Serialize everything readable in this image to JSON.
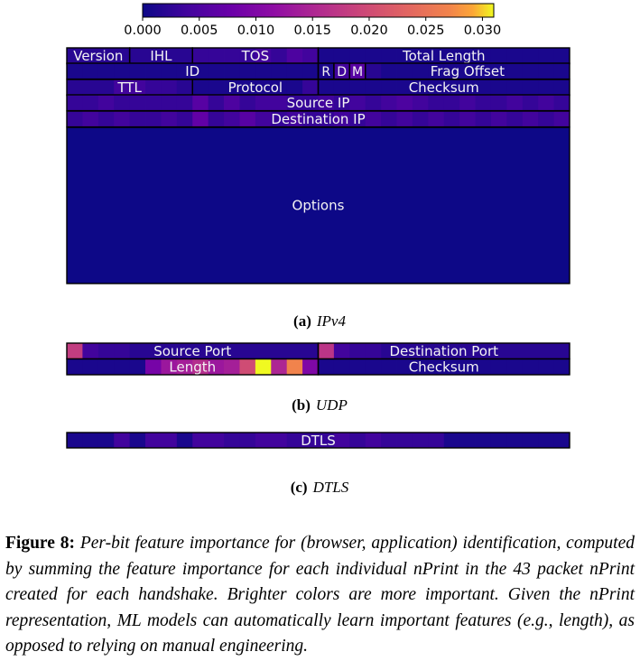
{
  "chart_data": {
    "type": "heatmap",
    "colormap": "plasma",
    "colorbar": {
      "range": [
        0.0,
        0.031
      ],
      "ticks": [
        "0.000",
        "0.005",
        "0.010",
        "0.015",
        "0.020",
        "0.025",
        "0.030"
      ],
      "tick_values": [
        0.0,
        0.005,
        0.01,
        0.015,
        0.02,
        0.025,
        0.03
      ],
      "orientation": "horizontal",
      "placement": "top"
    },
    "panels": [
      {
        "id": "ipv4",
        "label": "(a)",
        "caption": "IPv4",
        "bits_per_row": 32,
        "rows": [
          {
            "values": [
              0.002,
              0.002,
              0.002,
              0.002,
              0.002,
              0.002,
              0.002,
              0.002,
              0.003,
              0.003,
              0.003,
              0.003,
              0.004,
              0.003,
              0.005,
              0.004,
              0.001,
              0.001,
              0.001,
              0.001,
              0.001,
              0.001,
              0.001,
              0.001,
              0.001,
              0.001,
              0.001,
              0.001,
              0.001,
              0.001,
              0.001,
              0.001
            ],
            "fields": [
              {
                "label": "Version",
                "start": 0,
                "width": 4
              },
              {
                "label": "IHL",
                "start": 4,
                "width": 4
              },
              {
                "label": "TOS",
                "start": 8,
                "width": 8
              },
              {
                "label": "Total Length",
                "start": 16,
                "width": 16
              }
            ]
          },
          {
            "values": [
              0.001,
              0.001,
              0.001,
              0.001,
              0.001,
              0.001,
              0.001,
              0.001,
              0.001,
              0.001,
              0.001,
              0.001,
              0.001,
              0.001,
              0.001,
              0.001,
              0.001,
              0.004,
              0.006,
              0.002,
              0.001,
              0.001,
              0.001,
              0.001,
              0.001,
              0.001,
              0.001,
              0.001,
              0.001,
              0.001,
              0.001,
              0.001
            ],
            "fields": [
              {
                "label": "ID",
                "start": 0,
                "width": 16
              },
              {
                "label": "R",
                "start": 16,
                "width": 1
              },
              {
                "label": "D",
                "start": 17,
                "width": 1
              },
              {
                "label": "M",
                "start": 18,
                "width": 1
              },
              {
                "label": "Frag Offset",
                "start": 19,
                "width": 13
              }
            ]
          },
          {
            "values": [
              0.002,
              0.002,
              0.002,
              0.004,
              0.004,
              0.003,
              0.003,
              0.002,
              0.001,
              0.001,
              0.001,
              0.001,
              0.001,
              0.001,
              0.001,
              0.003,
              0.001,
              0.001,
              0.001,
              0.001,
              0.001,
              0.001,
              0.001,
              0.001,
              0.001,
              0.001,
              0.001,
              0.001,
              0.001,
              0.001,
              0.001,
              0.001
            ],
            "fields": [
              {
                "label": "TTL",
                "start": 0,
                "width": 8
              },
              {
                "label": "Protocol",
                "start": 8,
                "width": 8
              },
              {
                "label": "Checksum",
                "start": 16,
                "width": 16
              }
            ]
          },
          {
            "values": [
              0.003,
              0.003,
              0.004,
              0.003,
              0.003,
              0.003,
              0.003,
              0.003,
              0.006,
              0.003,
              0.005,
              0.003,
              0.004,
              0.004,
              0.003,
              0.003,
              0.004,
              0.003,
              0.004,
              0.003,
              0.004,
              0.005,
              0.004,
              0.003,
              0.003,
              0.004,
              0.003,
              0.003,
              0.004,
              0.003,
              0.004,
              0.003
            ],
            "fields": [
              {
                "label": "Source IP",
                "start": 0,
                "width": 32
              }
            ]
          },
          {
            "values": [
              0.003,
              0.004,
              0.003,
              0.004,
              0.003,
              0.003,
              0.004,
              0.003,
              0.007,
              0.003,
              0.004,
              0.006,
              0.004,
              0.003,
              0.004,
              0.003,
              0.003,
              0.004,
              0.003,
              0.004,
              0.003,
              0.004,
              0.003,
              0.004,
              0.003,
              0.004,
              0.003,
              0.004,
              0.003,
              0.004,
              0.003,
              0.004
            ],
            "fields": [
              {
                "label": "Destination IP",
                "start": 0,
                "width": 32
              }
            ]
          }
        ],
        "options_label": "Options",
        "options_value": 0.0
      },
      {
        "id": "udp",
        "label": "(b)",
        "caption": "UDP",
        "bits_per_row": 32,
        "rows": [
          {
            "values": [
              0.018,
              0.004,
              0.003,
              0.003,
              0.002,
              0.002,
              0.002,
              0.002,
              0.002,
              0.002,
              0.002,
              0.002,
              0.002,
              0.002,
              0.002,
              0.002,
              0.017,
              0.004,
              0.003,
              0.003,
              0.002,
              0.002,
              0.002,
              0.002,
              0.002,
              0.002,
              0.002,
              0.002,
              0.002,
              0.002,
              0.002,
              0.002
            ],
            "fields": [
              {
                "label": "Source Port",
                "start": 0,
                "width": 16
              },
              {
                "label": "Destination Port",
                "start": 16,
                "width": 16
              }
            ]
          },
          {
            "values": [
              0.001,
              0.001,
              0.001,
              0.001,
              0.001,
              0.009,
              0.013,
              0.014,
              0.016,
              0.013,
              0.014,
              0.02,
              0.031,
              0.015,
              0.027,
              0.01,
              0.001,
              0.001,
              0.001,
              0.001,
              0.001,
              0.001,
              0.001,
              0.001,
              0.001,
              0.001,
              0.001,
              0.001,
              0.001,
              0.001,
              0.001,
              0.001
            ],
            "fields": [
              {
                "label": "Length",
                "start": 0,
                "width": 16
              },
              {
                "label": "Checksum",
                "start": 16,
                "width": 16
              }
            ]
          }
        ]
      },
      {
        "id": "dtls",
        "label": "(c)",
        "caption": "DTLS",
        "bits_per_row": 32,
        "rows": [
          {
            "values": [
              0.001,
              0.001,
              0.001,
              0.004,
              0.001,
              0.004,
              0.004,
              0.001,
              0.004,
              0.004,
              0.003,
              0.003,
              0.004,
              0.004,
              0.003,
              0.003,
              0.003,
              0.004,
              0.003,
              0.004,
              0.003,
              0.003,
              0.003,
              0.003,
              0.001,
              0.001,
              0.001,
              0.001,
              0.001,
              0.001,
              0.001,
              0.001
            ],
            "fields": [
              {
                "label": "DTLS",
                "start": 0,
                "width": 32
              }
            ]
          }
        ]
      }
    ]
  },
  "figure_caption": {
    "label": "Figure 8:",
    "text": "Per-bit feature importance for (browser, application) identification, computed by summing the feature importance for each individual nPrint in the 43 packet nPrint created for each handshake. Brighter colors are more important. Given the nPrint representation, ML models can automatically learn important features (e.g., length), as opposed to relying on manual engineering."
  }
}
